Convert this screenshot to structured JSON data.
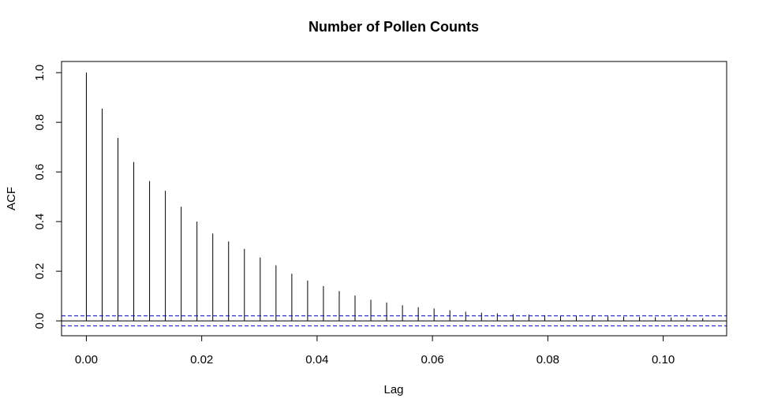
{
  "chart_data": {
    "type": "bar",
    "title": "Number of Pollen Counts",
    "xlabel": "Lag",
    "ylabel": "ACF",
    "xlim": [
      -0.0043,
      0.111
    ],
    "ylim": [
      -0.06,
      1.045
    ],
    "x_ticks": [
      0.0,
      0.02,
      0.04,
      0.06,
      0.08,
      0.1
    ],
    "x_tick_labels": [
      "0.00",
      "0.02",
      "0.04",
      "0.06",
      "0.08",
      "0.10"
    ],
    "y_ticks": [
      0.0,
      0.2,
      0.4,
      0.6,
      0.8,
      1.0
    ],
    "y_tick_labels": [
      "0.0",
      "0.2",
      "0.4",
      "0.6",
      "0.8",
      "1.0"
    ],
    "confidence_bounds": [
      0.02,
      -0.02
    ],
    "lag_step": 0.00274,
    "acf": [
      1.0,
      0.855,
      0.737,
      0.64,
      0.563,
      0.524,
      0.46,
      0.4,
      0.352,
      0.32,
      0.29,
      0.255,
      0.224,
      0.19,
      0.162,
      0.14,
      0.12,
      0.102,
      0.085,
      0.074,
      0.063,
      0.055,
      0.05,
      0.043,
      0.037,
      0.033,
      0.03,
      0.027,
      0.025,
      0.023,
      0.021,
      0.02,
      0.019,
      0.018,
      0.017,
      0.016,
      0.015,
      0.013,
      0.012,
      0.011
    ],
    "colors": {
      "bars": "#000000",
      "bounds": "#0000cc",
      "frame": "#000000"
    }
  }
}
